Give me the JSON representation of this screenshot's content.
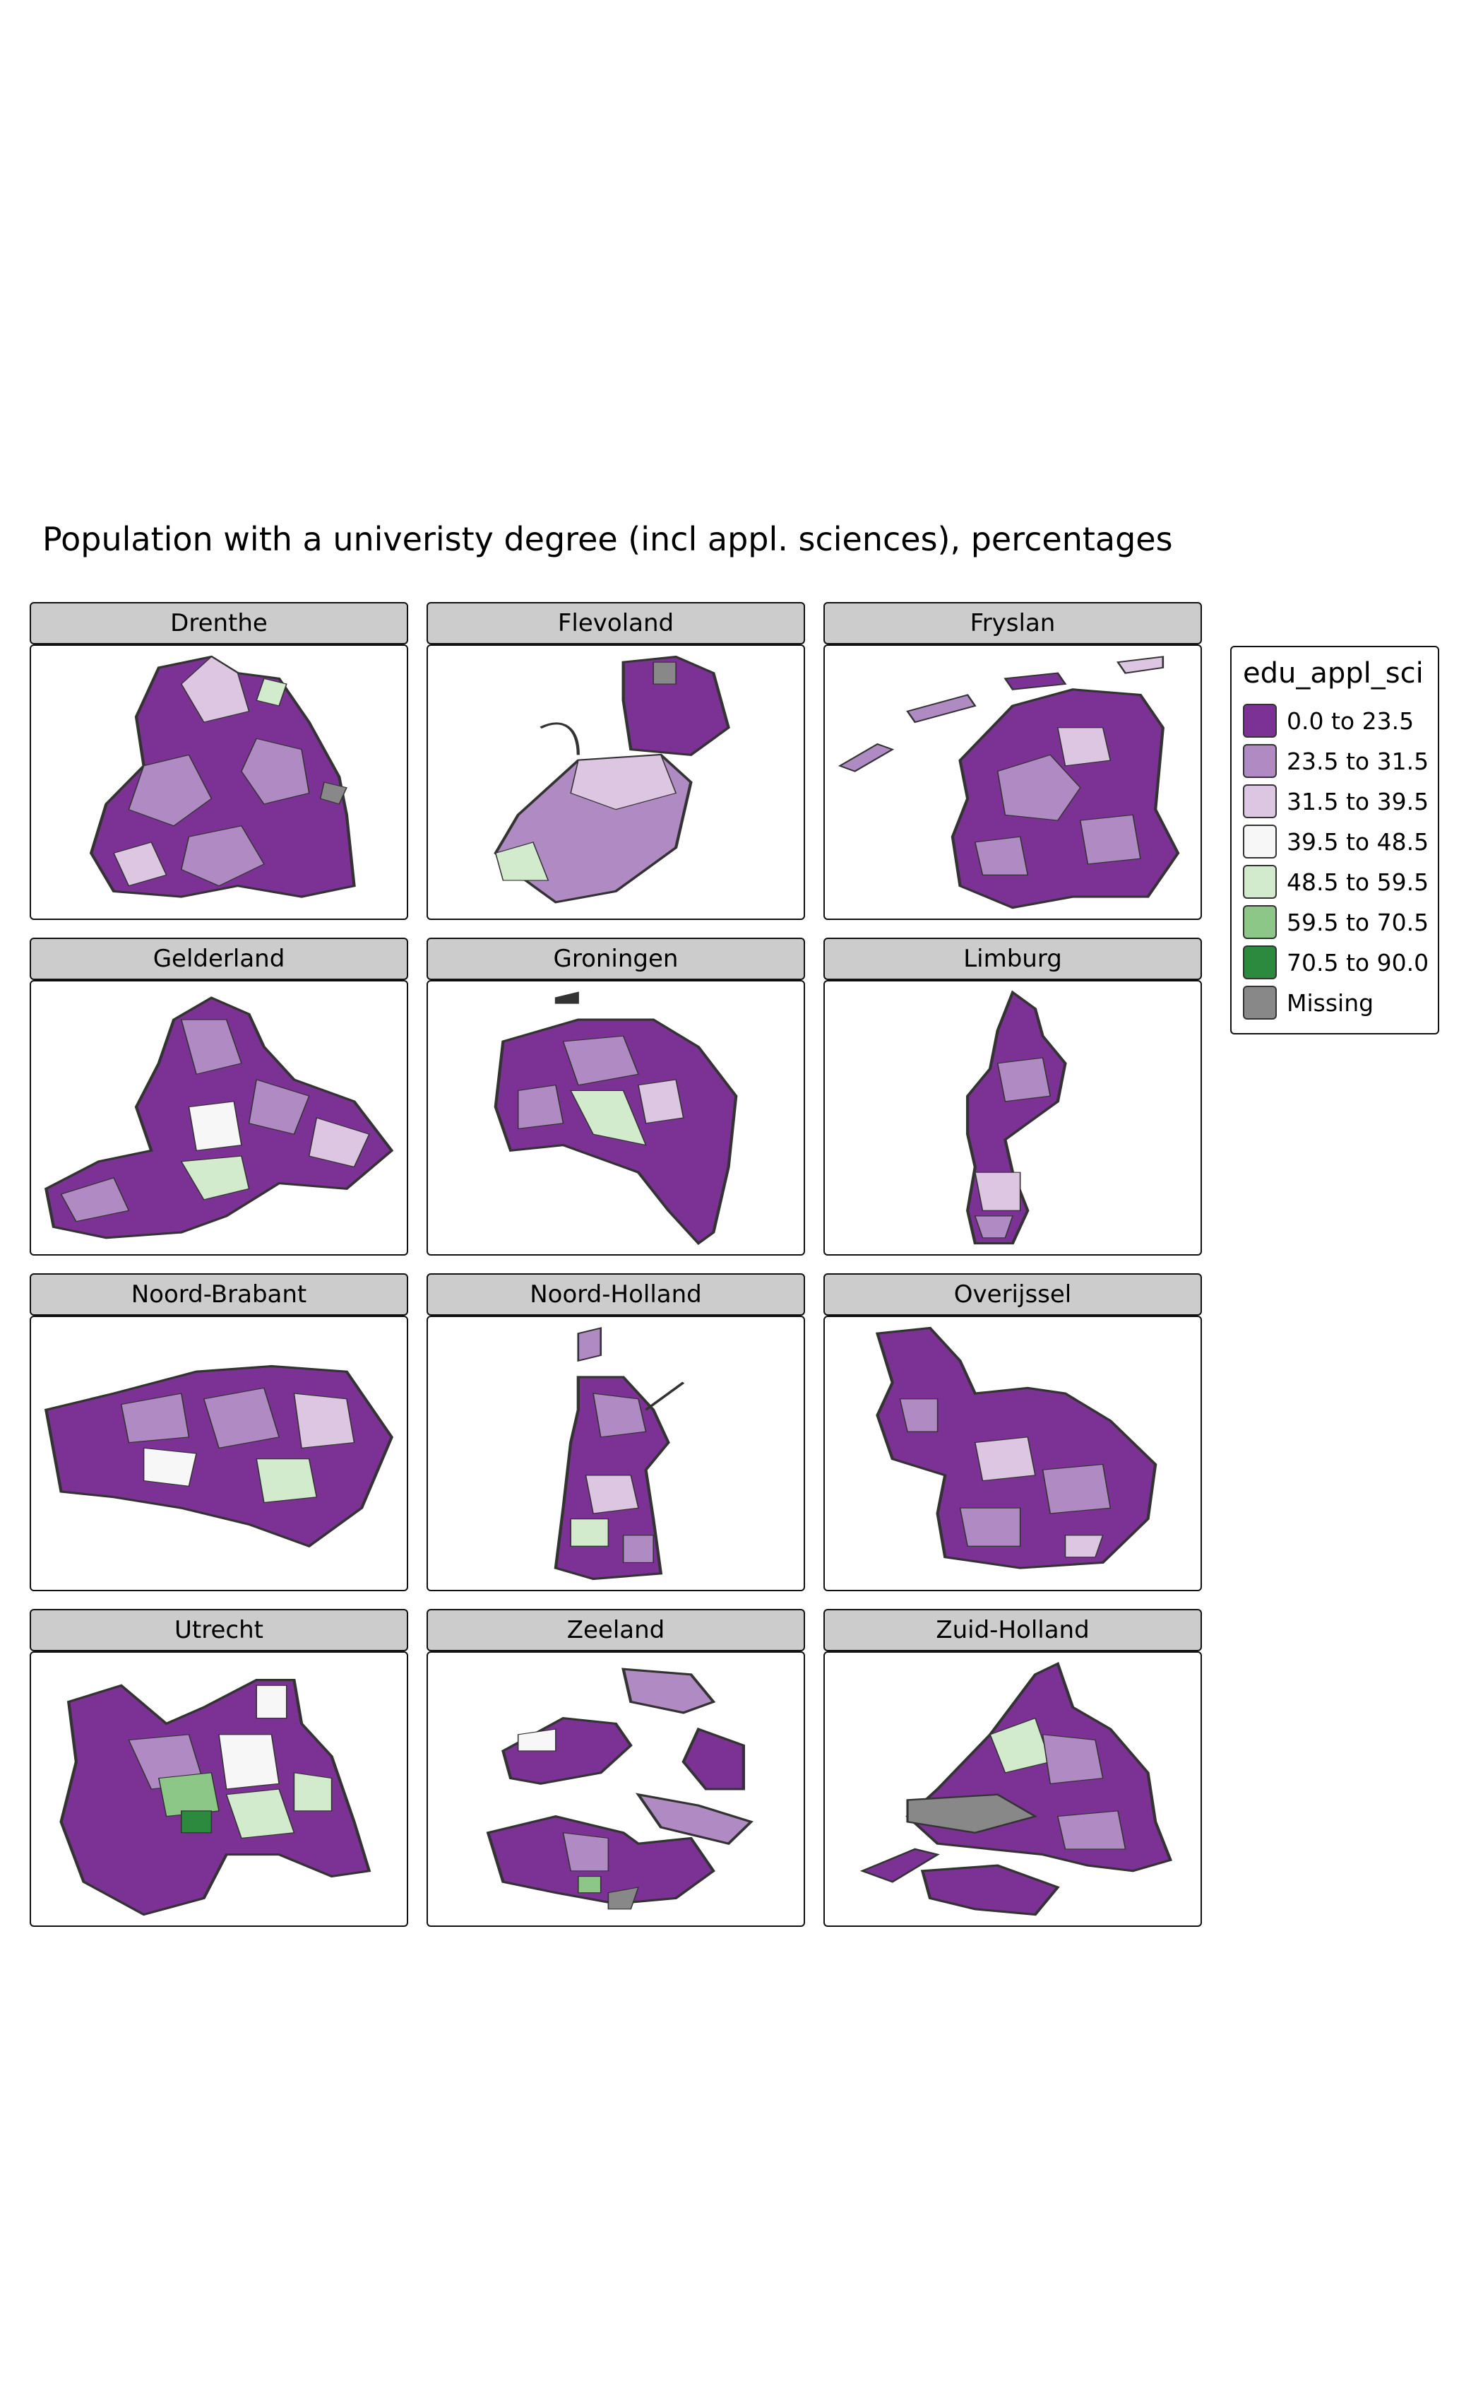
{
  "title": "Population with a univeristy degree (incl appl. sciences), percentages",
  "legend": {
    "title": "edu_appl_sci",
    "items": [
      {
        "label": "0.0 to 23.5",
        "color": "#7b3294"
      },
      {
        "label": "23.5 to 31.5",
        "color": "#b08bc3"
      },
      {
        "label": "31.5 to 39.5",
        "color": "#dcc6e2"
      },
      {
        "label": "39.5 to 48.5",
        "color": "#f7f7f7"
      },
      {
        "label": "48.5 to 59.5",
        "color": "#d2ebcd"
      },
      {
        "label": "59.5 to 70.5",
        "color": "#8cc788"
      },
      {
        "label": "70.5 to 90.0",
        "color": "#2b8a3e"
      },
      {
        "label": "Missing",
        "color": "#888888"
      }
    ]
  },
  "panels": [
    {
      "name": "Drenthe"
    },
    {
      "name": "Flevoland"
    },
    {
      "name": "Fryslan"
    },
    {
      "name": "Gelderland"
    },
    {
      "name": "Groningen"
    },
    {
      "name": "Limburg"
    },
    {
      "name": "Noord-Brabant"
    },
    {
      "name": "Noord-Holland"
    },
    {
      "name": "Overijssel"
    },
    {
      "name": "Utrecht"
    },
    {
      "name": "Zeeland"
    },
    {
      "name": "Zuid-Holland"
    }
  ]
}
